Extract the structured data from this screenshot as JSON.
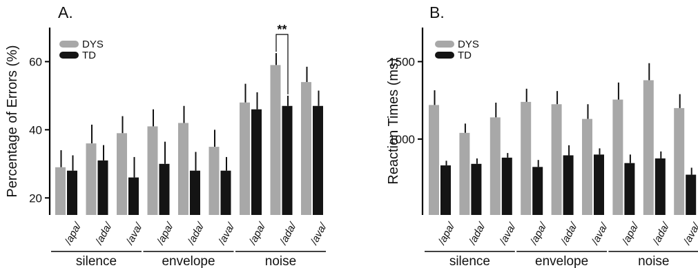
{
  "colors": {
    "dys": "#a8a8a8",
    "td": "#141414"
  },
  "chart_data": [
    {
      "type": "bar",
      "panel_label": "A.",
      "ylabel": "Percentage of Errors (%)",
      "ylim": [
        15,
        70
      ],
      "yticks": [
        20,
        40,
        60
      ],
      "categories": [
        "/apa/",
        "/ada/",
        "/ava/",
        "/apa/",
        "/ada/",
        "/ava/",
        "/apa/",
        "/ada/",
        "/ava/"
      ],
      "groups": [
        {
          "label": "silence",
          "from": 0,
          "to": 2
        },
        {
          "label": "envelope",
          "from": 3,
          "to": 5
        },
        {
          "label": "noise",
          "from": 6,
          "to": 8
        }
      ],
      "series": [
        {
          "name": "DYS",
          "values": [
            29,
            36,
            39,
            41,
            42,
            35,
            48,
            59,
            54
          ],
          "errors": [
            5,
            5.5,
            5,
            5,
            5,
            5,
            5.5,
            3.5,
            4.5
          ]
        },
        {
          "name": "TD",
          "values": [
            28,
            31,
            26,
            30,
            28,
            28,
            46,
            47,
            47
          ],
          "errors": [
            4.5,
            4.5,
            6,
            6.5,
            5.5,
            4,
            5,
            3,
            4.5
          ]
        }
      ],
      "significance": {
        "category": 7,
        "label": "**"
      },
      "legend_position": "top-left"
    },
    {
      "type": "bar",
      "panel_label": "B.",
      "ylabel": "Reaction  Times (ms)",
      "ylim": [
        510,
        1720
      ],
      "yticks": [
        1000,
        1500
      ],
      "categories": [
        "/apa/",
        "/ada/",
        "/ava/",
        "/apa/",
        "/ada/",
        "/ava/",
        "/apa/",
        "/ada/",
        "/ava/"
      ],
      "groups": [
        {
          "label": "silence",
          "from": 0,
          "to": 2
        },
        {
          "label": "envelope",
          "from": 3,
          "to": 5
        },
        {
          "label": "noise",
          "from": 6,
          "to": 8
        }
      ],
      "series": [
        {
          "name": "DYS",
          "values": [
            1220,
            1040,
            1140,
            1240,
            1225,
            1130,
            1255,
            1380,
            1200
          ],
          "errors": [
            95,
            60,
            95,
            85,
            85,
            95,
            110,
            110,
            90
          ]
        },
        {
          "name": "TD",
          "values": [
            830,
            840,
            880,
            820,
            895,
            900,
            845,
            875,
            770
          ],
          "errors": [
            30,
            35,
            30,
            45,
            65,
            40,
            55,
            45,
            45
          ]
        }
      ],
      "legend_position": "top-left"
    }
  ]
}
